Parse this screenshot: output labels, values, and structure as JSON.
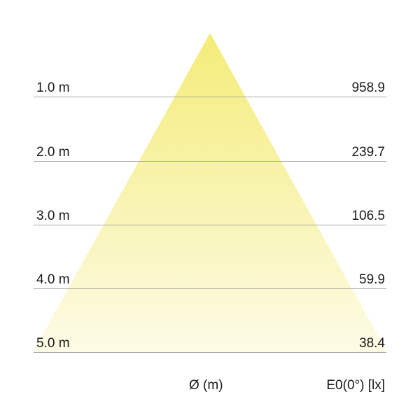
{
  "rows": [
    {
      "distance": "1.0 m",
      "illuminance": "958.9"
    },
    {
      "distance": "2.0 m",
      "illuminance": "239.7"
    },
    {
      "distance": "3.0 m",
      "illuminance": "106.5"
    },
    {
      "distance": "4.0 m",
      "illuminance": "59.9"
    },
    {
      "distance": "5.0 m",
      "illuminance": "38.4"
    }
  ],
  "footer": {
    "diameter_label": "Ø (m)",
    "illuminance_label": "E0(0°) [lx]"
  },
  "colors": {
    "cone_top": "#f4ec78",
    "cone_bottom": "#fdfbe6",
    "line": "#a8a8a0"
  }
}
